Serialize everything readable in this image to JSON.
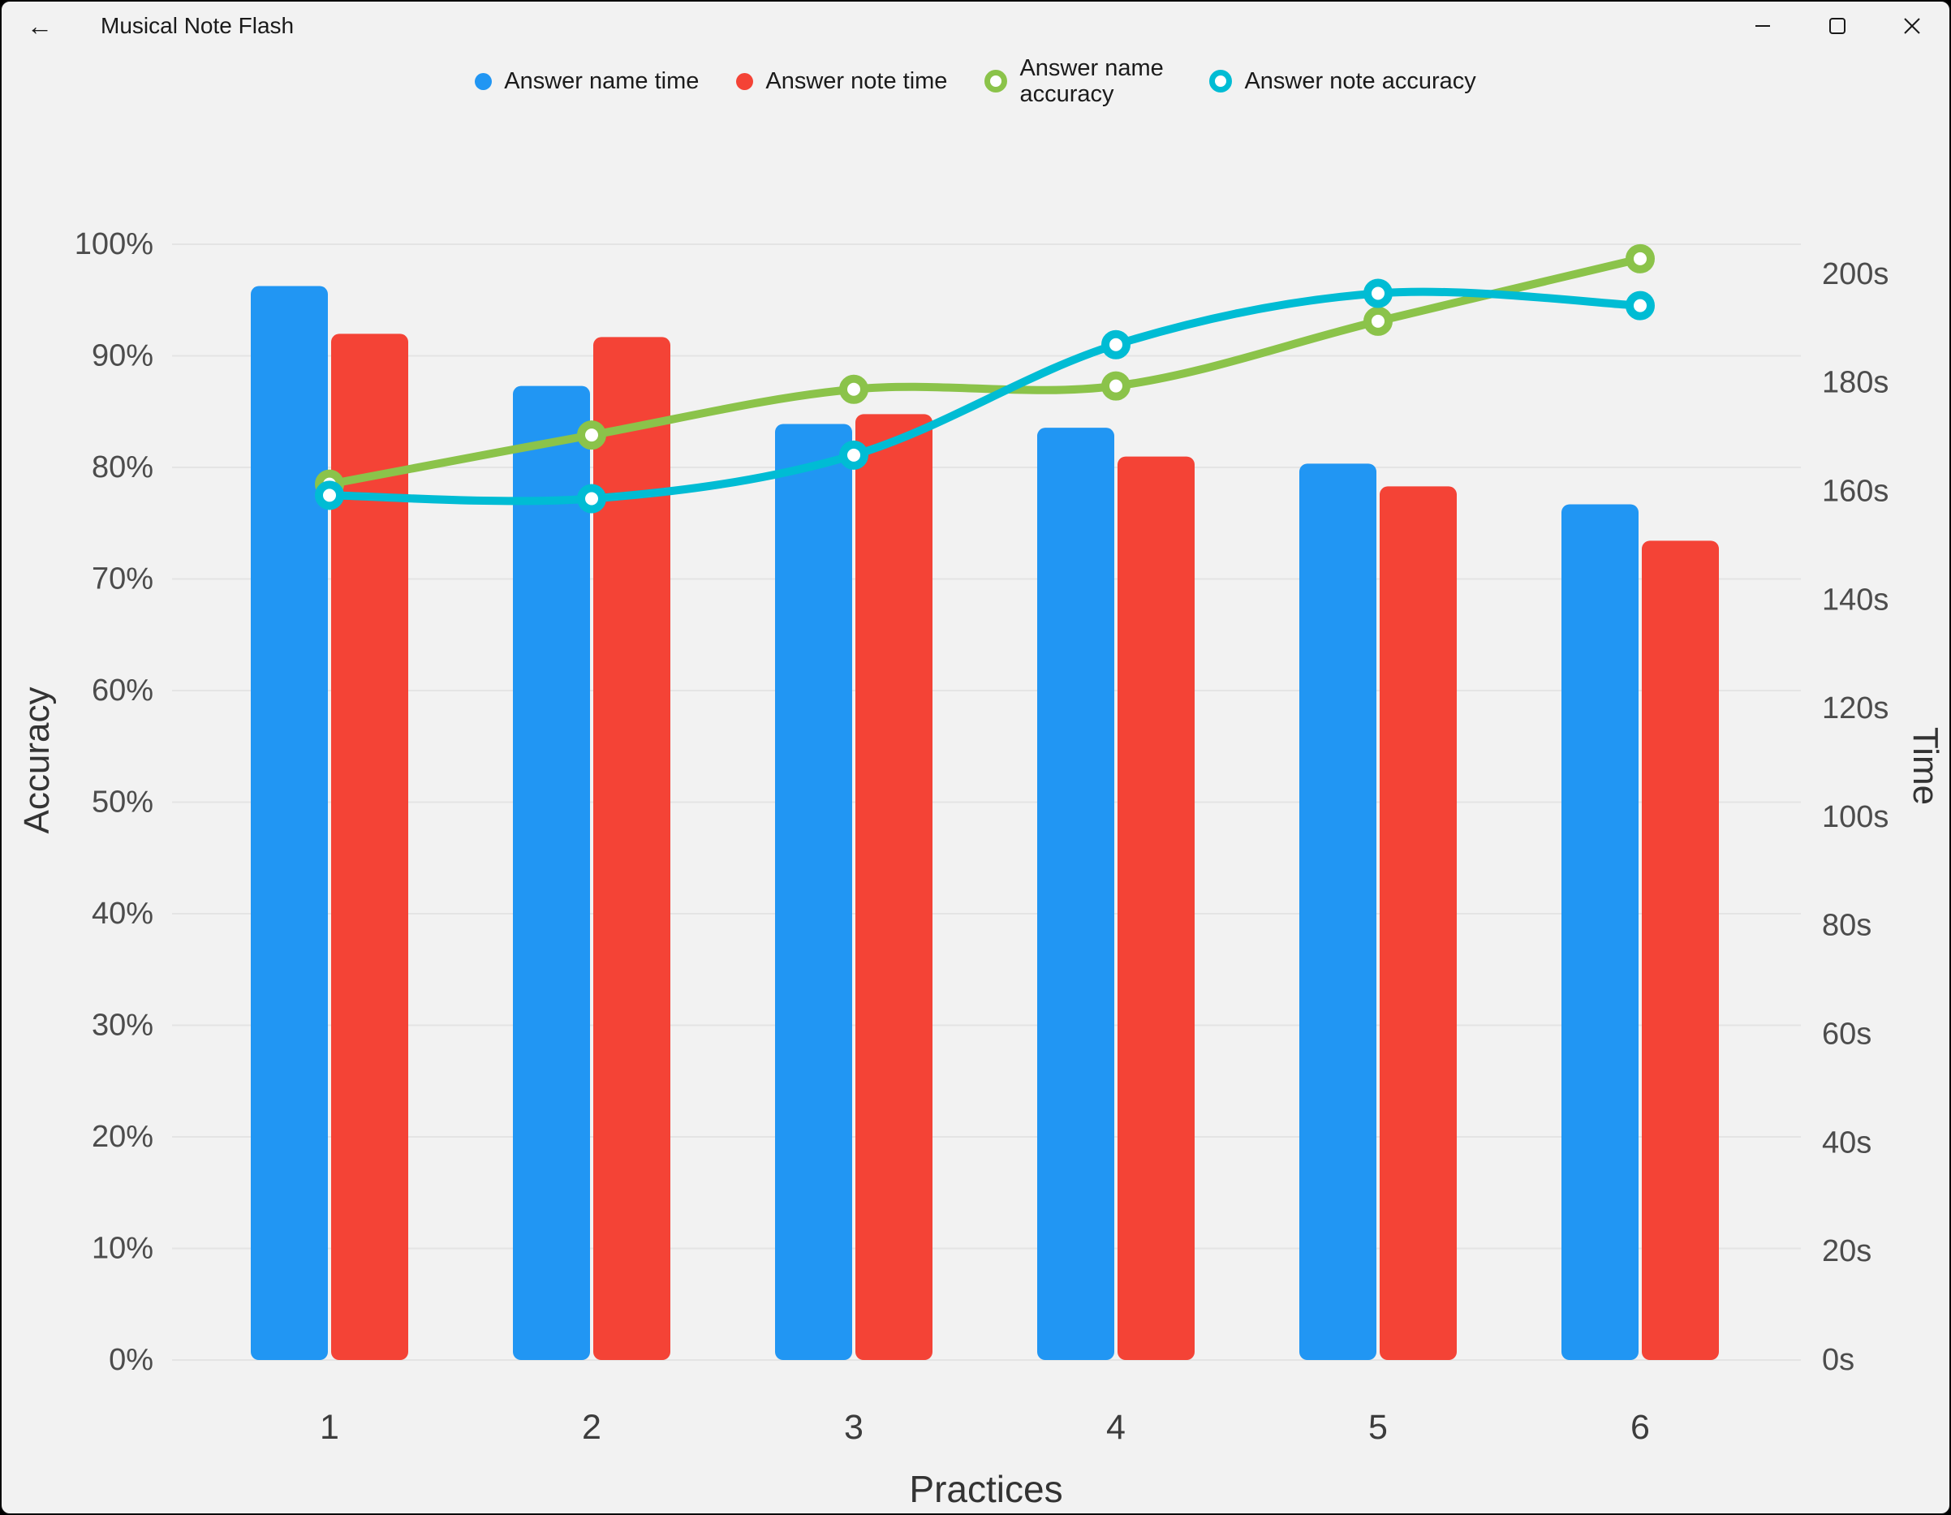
{
  "window": {
    "title": "Musical Note Flash",
    "back_icon": "←",
    "icons": {
      "back": "back-arrow",
      "minimize": "minimize",
      "maximize": "maximize",
      "close": "close"
    }
  },
  "chart_data": {
    "type": "bar+line",
    "title": "",
    "categories": [
      "1",
      "2",
      "3",
      "4",
      "5",
      "6"
    ],
    "xlabel": "Practices",
    "y_left_label": "Accuracy",
    "y_right_label": "Time",
    "ylim": [
      0,
      100
    ],
    "y2lim": [
      0,
      205.5
    ],
    "grid": "horizontal",
    "legend_position": "top",
    "y_left_ticks": [
      {
        "value": 0,
        "label": "0%"
      },
      {
        "value": 10,
        "label": "10%"
      },
      {
        "value": 20,
        "label": "20%"
      },
      {
        "value": 30,
        "label": "30%"
      },
      {
        "value": 40,
        "label": "40%"
      },
      {
        "value": 50,
        "label": "50%"
      },
      {
        "value": 60,
        "label": "60%"
      },
      {
        "value": 70,
        "label": "70%"
      },
      {
        "value": 80,
        "label": "80%"
      },
      {
        "value": 90,
        "label": "90%"
      },
      {
        "value": 100,
        "label": "100%"
      }
    ],
    "y_right_ticks": [
      {
        "value": 0,
        "label": "0s"
      },
      {
        "value": 20,
        "label": "20s"
      },
      {
        "value": 40,
        "label": "40s"
      },
      {
        "value": 60,
        "label": "60s"
      },
      {
        "value": 80,
        "label": "80s"
      },
      {
        "value": 100,
        "label": "100s"
      },
      {
        "value": 120,
        "label": "120s"
      },
      {
        "value": 140,
        "label": "140s"
      },
      {
        "value": 160,
        "label": "160s"
      },
      {
        "value": 180,
        "label": "180s"
      },
      {
        "value": 200,
        "label": "200s"
      }
    ],
    "series": [
      {
        "name": "Answer name time",
        "type": "bar",
        "axis": "time",
        "color": "#2196F3",
        "values": [
          197.8,
          179.4,
          172.4,
          171.7,
          165.1,
          157.6
        ]
      },
      {
        "name": "Answer note time",
        "type": "bar",
        "axis": "time",
        "color": "#F44336",
        "values": [
          189.0,
          188.4,
          174.2,
          166.4,
          160.9,
          150.9
        ]
      },
      {
        "name": "Answer name accuracy",
        "type": "line",
        "axis": "accuracy",
        "color": "#8BC34A",
        "values": [
          78.5,
          82.9,
          87.0,
          87.3,
          93.1,
          98.7
        ]
      },
      {
        "name": "Answer note accuracy",
        "type": "line",
        "axis": "accuracy",
        "color": "#00BCD4",
        "values": [
          77.5,
          77.2,
          81.1,
          91.0,
          95.6,
          94.5
        ]
      }
    ]
  }
}
